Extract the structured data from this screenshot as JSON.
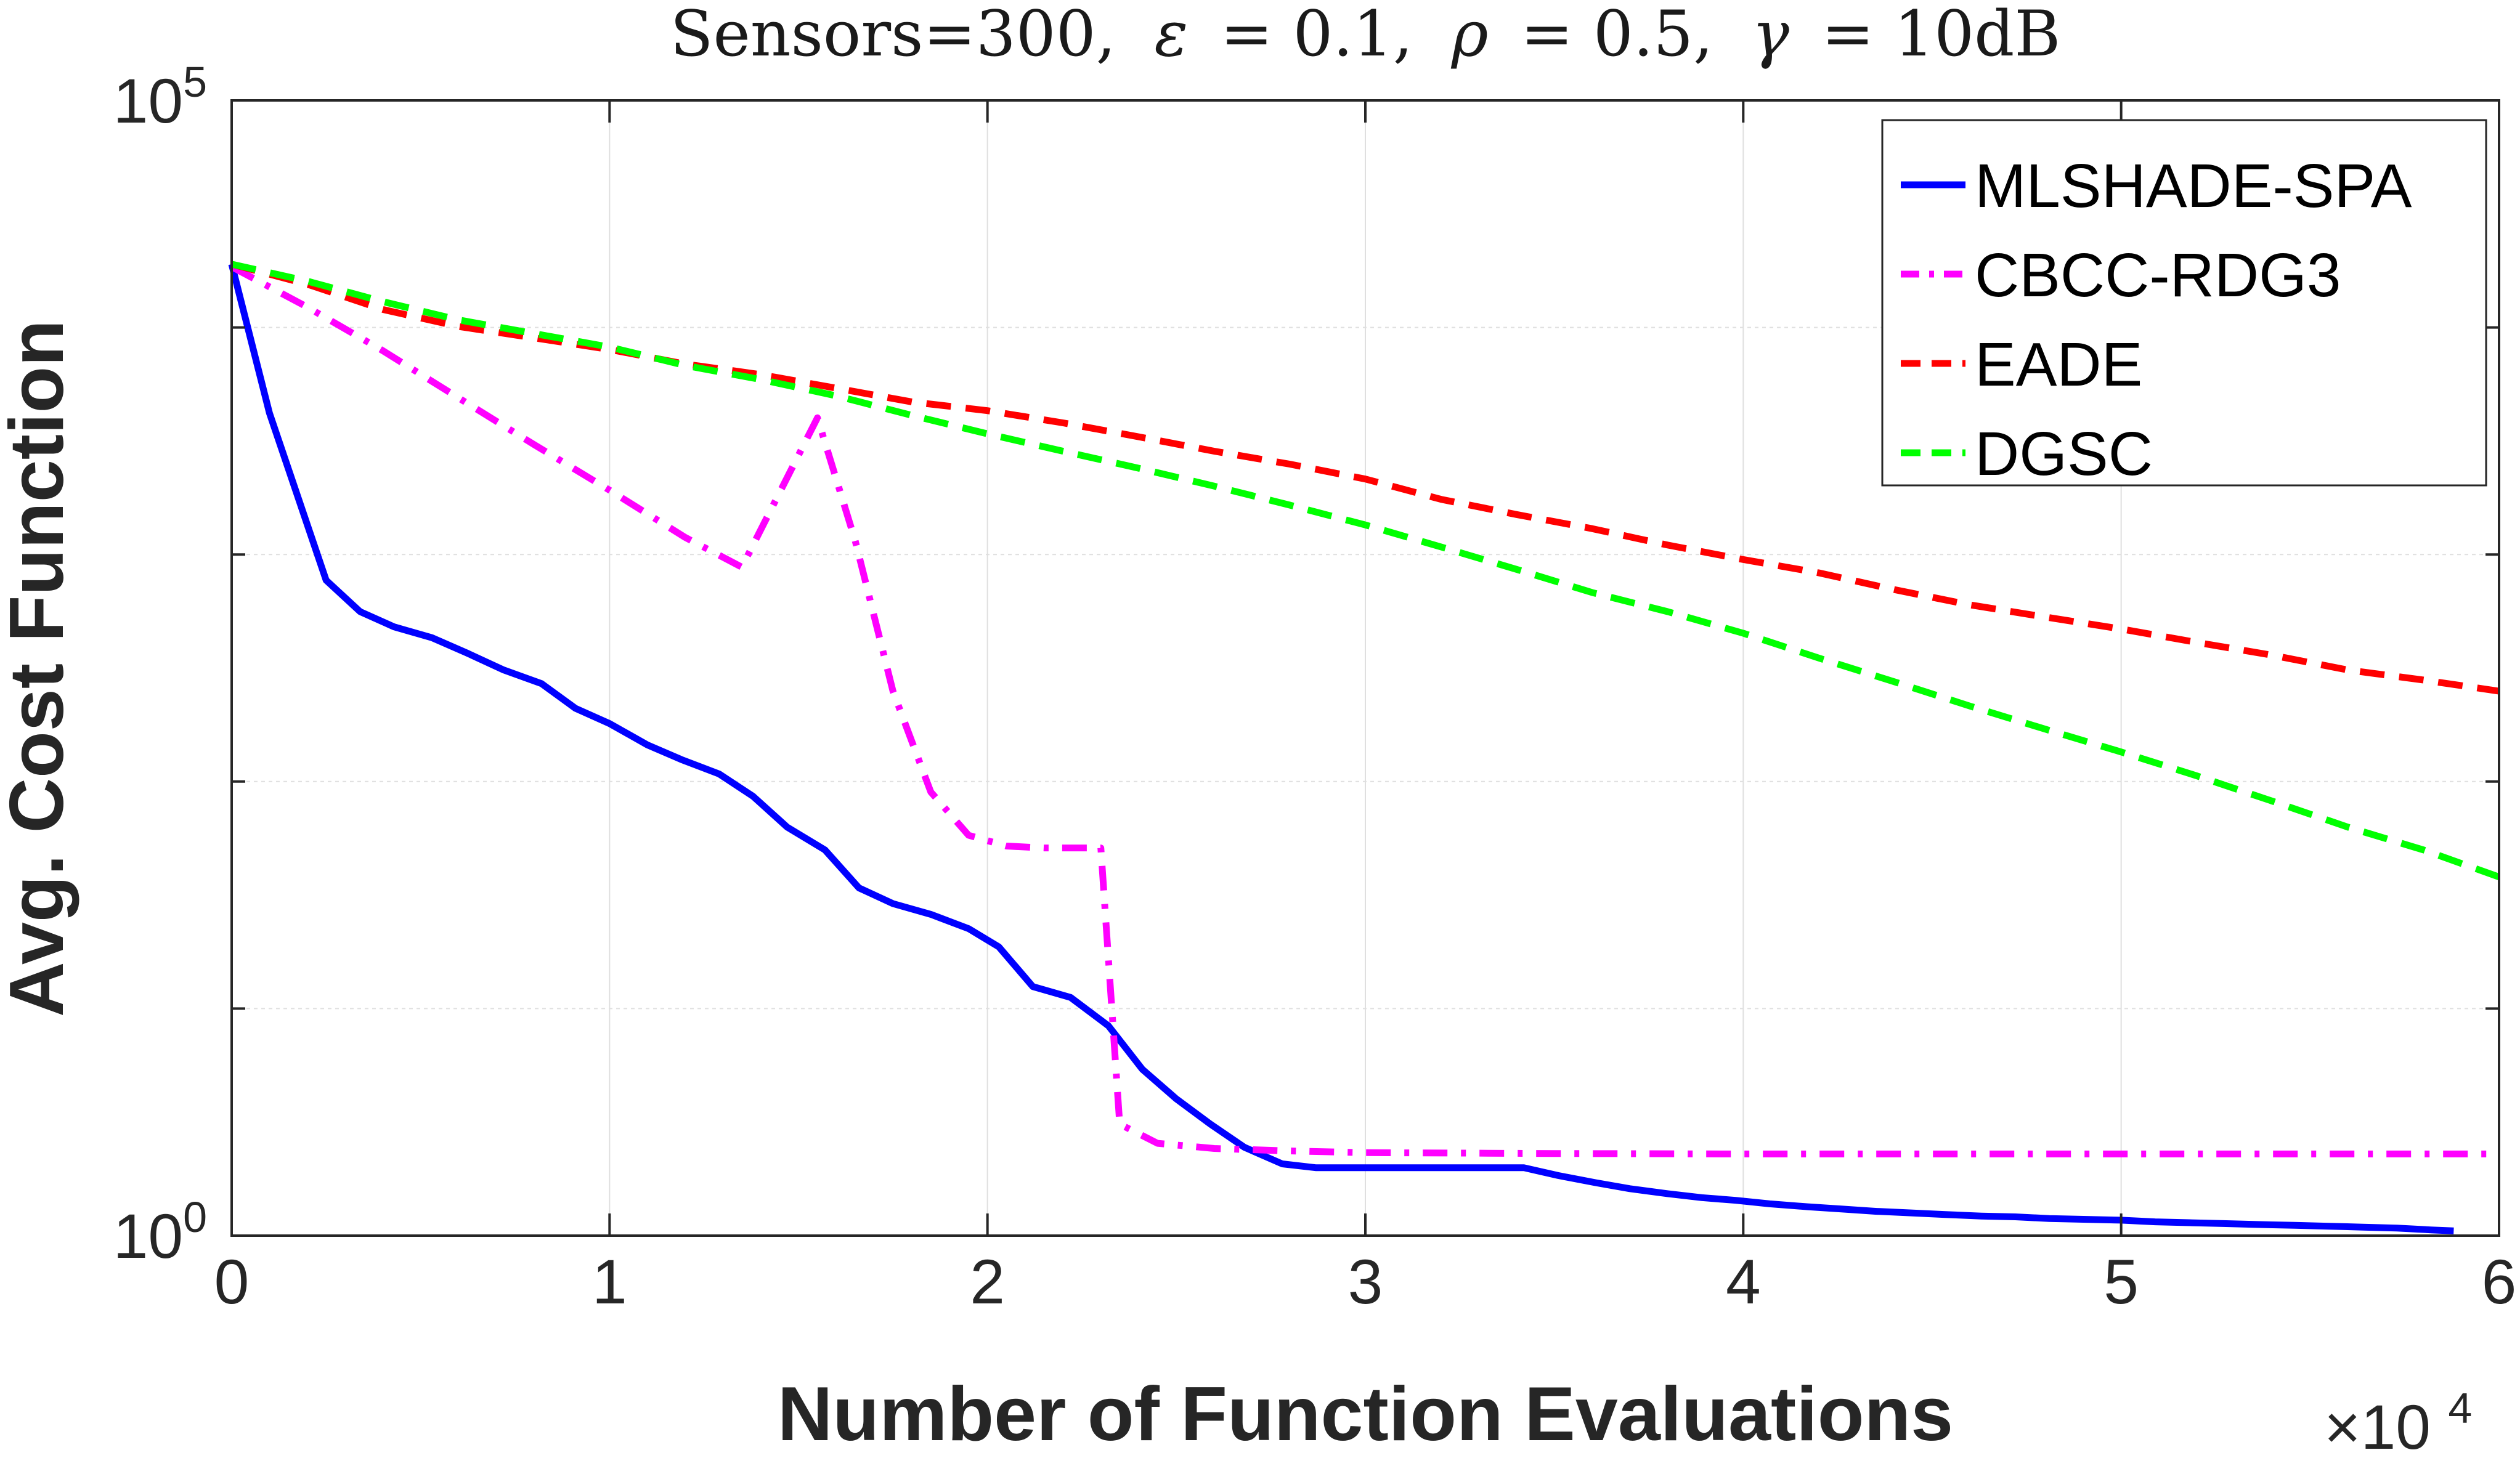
{
  "chart_data": {
    "type": "line",
    "title_parts": {
      "sensors": "Sensors=300,",
      "eps_sym": "ε",
      "eps_val": "= 0.1,",
      "rho_sym": "ρ",
      "rho_val": "= 0.5,",
      "gamma_sym": "γ",
      "gamma_val": "= 10dB"
    },
    "xlabel": "Number of Function Evaluations",
    "ylabel": "Avg. Cost Function",
    "x_multiplier": {
      "base": "×10",
      "exp": "4"
    },
    "xlim": [
      0,
      60000
    ],
    "ylim": [
      1,
      100000
    ],
    "yscale": "log",
    "grid": true,
    "legend_position": "top-right",
    "x_ticks": [
      {
        "value": 0,
        "label": "0"
      },
      {
        "value": 10000,
        "label": "1"
      },
      {
        "value": 20000,
        "label": "2"
      },
      {
        "value": 30000,
        "label": "3"
      },
      {
        "value": 40000,
        "label": "4"
      },
      {
        "value": 50000,
        "label": "5"
      },
      {
        "value": 60000,
        "label": "6"
      }
    ],
    "y_ticks": [
      {
        "value": 1,
        "base": "10",
        "exp": "0"
      },
      {
        "value": 100000,
        "base": "10",
        "exp": "5"
      }
    ],
    "y_minor_grid": [
      10,
      100,
      1000,
      10000
    ],
    "series": [
      {
        "name": "MLSHADE-SPA",
        "color": "#0000ff",
        "dash": "solid",
        "points": [
          [
            0,
            19000
          ],
          [
            1000,
            4200
          ],
          [
            2500,
            770
          ],
          [
            3400,
            560
          ],
          [
            4300,
            480
          ],
          [
            5300,
            430
          ],
          [
            6200,
            370
          ],
          [
            7200,
            310
          ],
          [
            8200,
            270
          ],
          [
            9100,
            210
          ],
          [
            10000,
            180
          ],
          [
            11000,
            145
          ],
          [
            11900,
            125
          ],
          [
            12900,
            108
          ],
          [
            13800,
            86
          ],
          [
            14700,
            63
          ],
          [
            15700,
            50
          ],
          [
            16600,
            34
          ],
          [
            17500,
            29
          ],
          [
            18500,
            26
          ],
          [
            19500,
            22.5
          ],
          [
            20300,
            18.7
          ],
          [
            21200,
            12.5
          ],
          [
            22200,
            11.2
          ],
          [
            23200,
            8.4
          ],
          [
            24100,
            5.4
          ],
          [
            25000,
            4.0
          ],
          [
            25900,
            3.1
          ],
          [
            26800,
            2.45
          ],
          [
            27800,
            2.07
          ],
          [
            28700,
            1.99
          ],
          [
            29600,
            1.99
          ],
          [
            30500,
            1.99
          ],
          [
            31500,
            1.99
          ],
          [
            32400,
            1.99
          ],
          [
            33300,
            1.99
          ],
          [
            34200,
            1.99
          ],
          [
            35100,
            1.84
          ],
          [
            36100,
            1.71
          ],
          [
            37000,
            1.61
          ],
          [
            38000,
            1.53
          ],
          [
            38900,
            1.47
          ],
          [
            39800,
            1.43
          ],
          [
            40700,
            1.38
          ],
          [
            41700,
            1.34
          ],
          [
            42600,
            1.31
          ],
          [
            43500,
            1.28
          ],
          [
            44400,
            1.26
          ],
          [
            45300,
            1.24
          ],
          [
            46300,
            1.22
          ],
          [
            47200,
            1.21
          ],
          [
            48100,
            1.19
          ],
          [
            49000,
            1.18
          ],
          [
            50000,
            1.17
          ],
          [
            50900,
            1.15
          ],
          [
            51800,
            1.14
          ],
          [
            52700,
            1.13
          ],
          [
            53600,
            1.12
          ],
          [
            54600,
            1.11
          ],
          [
            55500,
            1.1
          ],
          [
            56400,
            1.09
          ],
          [
            57300,
            1.08
          ],
          [
            58200,
            1.06
          ],
          [
            58800,
            1.05
          ]
        ]
      },
      {
        "name": "CBCC-RDG3",
        "color": "#ff00ff",
        "dash": "dashdot",
        "points": [
          [
            0,
            18500
          ],
          [
            2000,
            12300
          ],
          [
            4000,
            7900
          ],
          [
            6000,
            4900
          ],
          [
            8000,
            3050
          ],
          [
            10000,
            1920
          ],
          [
            12000,
            1190
          ],
          [
            13500,
            880
          ],
          [
            15500,
            4000
          ],
          [
            16500,
            1150
          ],
          [
            17500,
            250
          ],
          [
            18500,
            90
          ],
          [
            19500,
            58
          ],
          [
            20500,
            52
          ],
          [
            21500,
            51
          ],
          [
            22500,
            51
          ],
          [
            23000,
            51
          ],
          [
            23500,
            3.1
          ],
          [
            24500,
            2.55
          ],
          [
            26000,
            2.42
          ],
          [
            28000,
            2.36
          ],
          [
            30000,
            2.32
          ],
          [
            35000,
            2.3
          ],
          [
            40000,
            2.29
          ],
          [
            45000,
            2.29
          ],
          [
            50000,
            2.29
          ],
          [
            55000,
            2.29
          ],
          [
            60000,
            2.29
          ]
        ]
      },
      {
        "name": "EADE",
        "color": "#ff0000",
        "dash": "dashed",
        "points": [
          [
            0,
            19000
          ],
          [
            2000,
            15500
          ],
          [
            4000,
            12000
          ],
          [
            6000,
            10100
          ],
          [
            8000,
            9000
          ],
          [
            10000,
            8000
          ],
          [
            12000,
            6900
          ],
          [
            14000,
            6200
          ],
          [
            16000,
            5400
          ],
          [
            18000,
            4700
          ],
          [
            20000,
            4300
          ],
          [
            22000,
            3800
          ],
          [
            24000,
            3300
          ],
          [
            26000,
            2850
          ],
          [
            28000,
            2500
          ],
          [
            30000,
            2150
          ],
          [
            32000,
            1750
          ],
          [
            34000,
            1500
          ],
          [
            36000,
            1300
          ],
          [
            38000,
            1100
          ],
          [
            40000,
            950
          ],
          [
            42000,
            830
          ],
          [
            44000,
            700
          ],
          [
            46000,
            600
          ],
          [
            48000,
            530
          ],
          [
            50000,
            470
          ],
          [
            52000,
            410
          ],
          [
            54000,
            360
          ],
          [
            56000,
            310
          ],
          [
            58000,
            280
          ],
          [
            60000,
            250
          ]
        ]
      },
      {
        "name": "DGSC",
        "color": "#00ff00",
        "dash": "dashed",
        "points": [
          [
            0,
            19000
          ],
          [
            2000,
            16000
          ],
          [
            4000,
            13000
          ],
          [
            6000,
            10800
          ],
          [
            8000,
            9400
          ],
          [
            10000,
            8200
          ],
          [
            12000,
            6800
          ],
          [
            14000,
            5900
          ],
          [
            16000,
            5000
          ],
          [
            18000,
            4100
          ],
          [
            20000,
            3400
          ],
          [
            22000,
            2850
          ],
          [
            24000,
            2400
          ],
          [
            26000,
            2000
          ],
          [
            28000,
            1650
          ],
          [
            30000,
            1350
          ],
          [
            32000,
            1080
          ],
          [
            34000,
            860
          ],
          [
            36000,
            680
          ],
          [
            38000,
            560
          ],
          [
            40000,
            450
          ],
          [
            42000,
            350
          ],
          [
            44000,
            275
          ],
          [
            46000,
            215
          ],
          [
            48000,
            170
          ],
          [
            50000,
            135
          ],
          [
            52000,
            106
          ],
          [
            54000,
            82
          ],
          [
            56000,
            63
          ],
          [
            58000,
            50
          ],
          [
            60000,
            38
          ]
        ]
      }
    ]
  }
}
